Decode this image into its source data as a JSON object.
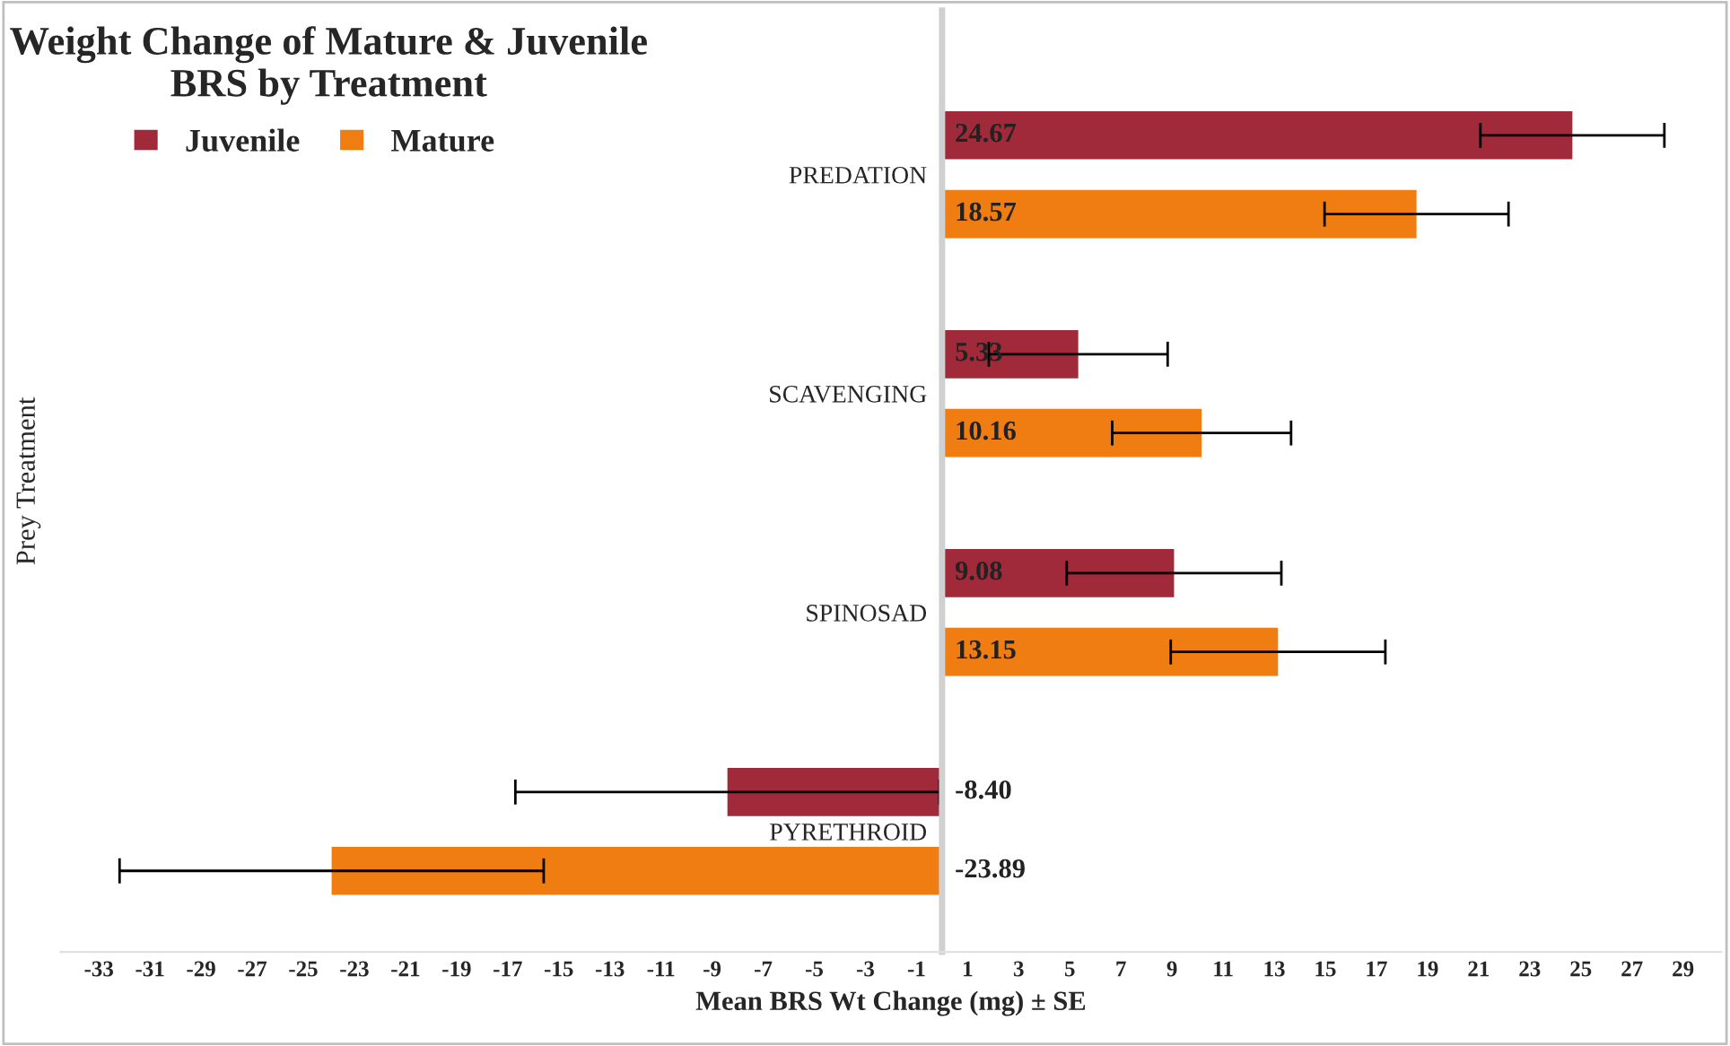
{
  "chart_data": {
    "type": "bar",
    "orientation": "horizontal",
    "title": "Weight Change of Mature & Juvenile BRS by Treatment",
    "xlabel": "Mean BRS Wt Change (mg) ± SE",
    "ylabel": "Prey Treatment",
    "categories": [
      "PREDATION",
      "SCAVENGING",
      "SPINOSAD",
      "PYRETHROID"
    ],
    "series": [
      {
        "name": "Juvenile",
        "color": "#a12a3a",
        "values": [
          24.67,
          5.33,
          9.08,
          -8.4
        ],
        "errors": [
          3.6,
          3.5,
          4.2,
          8.3
        ],
        "value_labels": [
          "24.67",
          "5.33",
          "9.08",
          "-8.40"
        ]
      },
      {
        "name": "Mature",
        "color": "#ef7d12",
        "values": [
          18.57,
          10.16,
          13.15,
          -23.89
        ],
        "errors": [
          3.6,
          3.5,
          4.2,
          8.3
        ],
        "value_labels": [
          "18.57",
          "10.16",
          "13.15",
          "-23.89"
        ]
      }
    ],
    "xlim": [
      -34.5,
      30.5
    ],
    "xticks": [
      -33,
      -31,
      -29,
      -27,
      -25,
      -23,
      -21,
      -19,
      -17,
      -15,
      -13,
      -11,
      -9,
      -7,
      -5,
      -3,
      -1,
      1,
      3,
      5,
      7,
      9,
      11,
      13,
      15,
      17,
      19,
      21,
      23,
      25,
      27,
      29
    ],
    "legend": "top left",
    "grid": false
  }
}
